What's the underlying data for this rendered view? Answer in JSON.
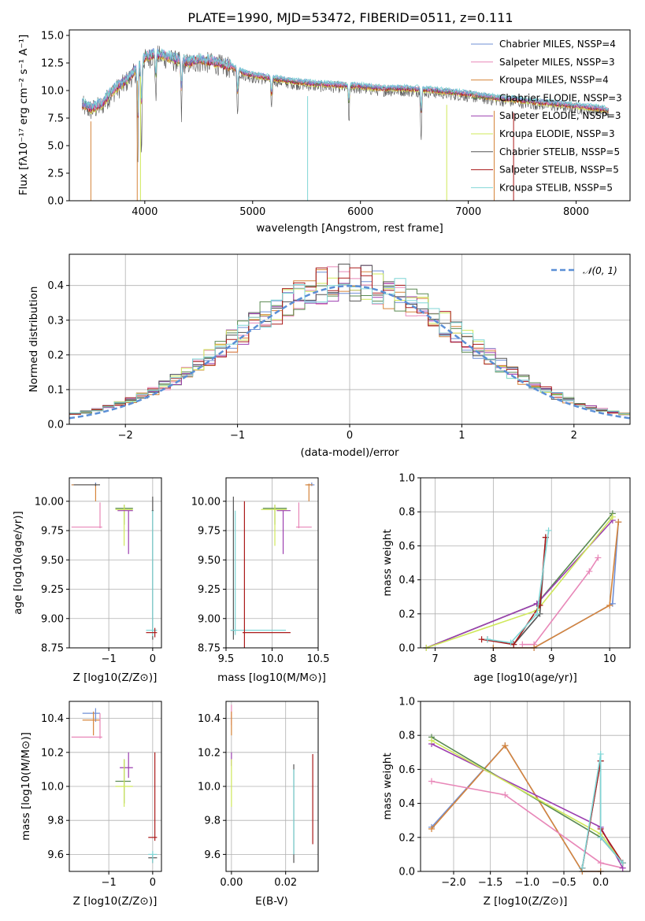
{
  "title": "PLATE=1990, MJD=53472, FIBERID=0511, z=0.111",
  "colors": {
    "chabrier_miles": "#6f8fd6",
    "salpeter_miles": "#e887b8",
    "kroupa_miles": "#d6843a",
    "chabrier_elodie": "#5a8a52",
    "salpeter_elodie": "#9c3fb0",
    "kroupa_elodie": "#cfe85a",
    "chabrier_stelib": "#555555",
    "salpeter_stelib": "#aa1a1a",
    "kroupa_stelib": "#7fd6d6",
    "normal": "#5b8fd6"
  },
  "chart_data": [
    {
      "type": "line",
      "name": "spectrum",
      "xlabel": "wavelength [Angstrom, rest frame]",
      "ylabel": "Flux [fλ10⁻¹⁷ erg cm⁻² s⁻¹ A⁻¹]",
      "xlim": [
        3300,
        8500
      ],
      "ylim": [
        0,
        15.5
      ],
      "xticks": [
        "4000",
        "5000",
        "6000",
        "7000",
        "8000"
      ],
      "yticks": [
        "0.0",
        "2.5",
        "5.0",
        "7.5",
        "10.0",
        "12.5",
        "15.0"
      ],
      "legend_position": "top-right",
      "legend": [
        {
          "label": "Chabrier MILES, NSSP=4",
          "color_key": "chabrier_miles"
        },
        {
          "label": "Salpeter MILES, NSSP=3",
          "color_key": "salpeter_miles"
        },
        {
          "label": "Kroupa MILES, NSSP=4",
          "color_key": "kroupa_miles"
        },
        {
          "label": "Chabrier ELODIE, NSSP=3",
          "color_key": "chabrier_elodie"
        },
        {
          "label": "Salpeter ELODIE, NSSP=3",
          "color_key": "salpeter_elodie"
        },
        {
          "label": "Kroupa ELODIE, NSSP=3",
          "color_key": "kroupa_elodie"
        },
        {
          "label": "Chabrier STELIB, NSSP=5",
          "color_key": "chabrier_stelib"
        },
        {
          "label": "Salpeter STELIB, NSSP=5",
          "color_key": "salpeter_stelib"
        },
        {
          "label": "Kroupa STELIB, NSSP=5",
          "color_key": "kroupa_stelib"
        }
      ],
      "continuum_x": [
        3420,
        3500,
        3600,
        3700,
        3800,
        3900,
        4000,
        4100,
        4200,
        4300,
        4400,
        4500,
        4600,
        4700,
        4800,
        4900,
        5000,
        5200,
        5400,
        5600,
        5800,
        6000,
        6200,
        6400,
        6600,
        6800,
        7000,
        7200,
        7400,
        7600,
        7800,
        8000,
        8200,
        8300
      ],
      "continuum_y": [
        8.6,
        8.2,
        8.6,
        9.8,
        10.5,
        11.5,
        12.8,
        13.2,
        12.9,
        12.6,
        12.4,
        12.6,
        12.5,
        12.3,
        12.0,
        11.5,
        11.2,
        10.9,
        10.6,
        10.4,
        10.3,
        10.2,
        10.0,
        10.0,
        9.9,
        9.7,
        9.5,
        9.2,
        9.0,
        8.8,
        8.6,
        8.4,
        8.2,
        8.0
      ]
    },
    {
      "type": "line",
      "name": "residuals",
      "xlabel": "(data-model)/error",
      "ylabel": "Normed distribution",
      "xlim": [
        -2.5,
        2.5
      ],
      "ylim": [
        0,
        0.49
      ],
      "xticks": [
        "−2",
        "−1",
        "0",
        "1",
        "2"
      ],
      "yticks": [
        "0.0",
        "0.1",
        "0.2",
        "0.3",
        "0.4"
      ],
      "grid": true,
      "legend_position": "top-right",
      "legend": [
        {
          "label": "𝒩(0, 1)",
          "color_key": "normal"
        }
      ]
    },
    {
      "type": "scatter",
      "name": "age-vs-Z",
      "xlabel": "Z [log10(Z/Z⊙)]",
      "ylabel": "age  [log10(age/yr)]",
      "xlim": [
        -1.9,
        0.2
      ],
      "ylim": [
        8.75,
        10.2
      ],
      "xticks": [
        "−1",
        "0"
      ],
      "yticks": [
        "8.75",
        "9.00",
        "9.25",
        "9.50",
        "9.75",
        "10.00"
      ],
      "grid": true,
      "points": [
        {
          "k": "chabrier_miles",
          "x": -1.3,
          "y": 10.14,
          "x0": -1.85,
          "x1": -1.2,
          "y0": 10.13,
          "y1": 10.16
        },
        {
          "k": "kroupa_miles",
          "x": -1.3,
          "y": 10.14,
          "x0": -1.85,
          "x1": -1.2,
          "y0": 10.0,
          "y1": 10.15
        },
        {
          "k": "chabrier_stelib",
          "x": -1.3,
          "y": 10.14,
          "x0": -1.8,
          "x1": -1.2,
          "y0": 10.13,
          "y1": 10.15
        },
        {
          "k": "salpeter_miles",
          "x": -1.2,
          "y": 9.78,
          "x0": -1.85,
          "x1": -1.15,
          "y0": 9.77,
          "y1": 9.99
        },
        {
          "k": "chabrier_elodie",
          "x": -0.65,
          "y": 9.94,
          "x0": -0.85,
          "x1": -0.45,
          "y0": 9.8,
          "y1": 9.97
        },
        {
          "k": "kroupa_elodie",
          "x": -0.65,
          "y": 9.93,
          "x0": -0.85,
          "x1": -0.45,
          "y0": 9.62,
          "y1": 9.97
        },
        {
          "k": "salpeter_elodie",
          "x": -0.55,
          "y": 9.92,
          "x0": -0.8,
          "x1": -0.45,
          "y0": 9.55,
          "y1": 9.92
        },
        {
          "k": "chabrier_stelib",
          "x": 0.0,
          "y": 9.92,
          "x0": -0.02,
          "x1": 0.02,
          "y0": 8.82,
          "y1": 10.04
        },
        {
          "k": "kroupa_stelib",
          "x": 0.0,
          "y": 8.9,
          "x0": -0.15,
          "x1": 0.1,
          "y0": 8.85,
          "y1": 9.92
        },
        {
          "k": "salpeter_stelib",
          "x": 0.05,
          "y": 8.88,
          "x0": -0.15,
          "x1": 0.1,
          "y0": 8.84,
          "y1": 8.92
        }
      ]
    },
    {
      "type": "scatter",
      "name": "age-vs-mass",
      "xlabel": "mass [log10(M/M⊙)]",
      "ylabel": "",
      "xlim": [
        9.5,
        10.5
      ],
      "ylim": [
        8.75,
        10.2
      ],
      "xticks": [
        "9.5",
        "10.0",
        "10.5"
      ],
      "yticks": [
        "8.75",
        "9.00",
        "9.25",
        "9.50",
        "9.75",
        "10.00"
      ],
      "grid": true,
      "points": [
        {
          "k": "chabrier_miles",
          "x": 10.43,
          "y": 10.14,
          "x0": 10.38,
          "x1": 10.46,
          "y0": 10.13,
          "y1": 10.16
        },
        {
          "k": "kroupa_miles",
          "x": 10.4,
          "y": 10.14,
          "x0": 10.36,
          "x1": 10.44,
          "y0": 10.0,
          "y1": 10.15
        },
        {
          "k": "salpeter_miles",
          "x": 10.29,
          "y": 9.78,
          "x0": 10.26,
          "x1": 10.43,
          "y0": 9.77,
          "y1": 9.99
        },
        {
          "k": "chabrier_elodie",
          "x": 10.03,
          "y": 9.94,
          "x0": 9.9,
          "x1": 10.16,
          "y0": 9.8,
          "y1": 9.97
        },
        {
          "k": "kroupa_elodie",
          "x": 10.03,
          "y": 9.93,
          "x0": 9.88,
          "x1": 10.16,
          "y0": 9.62,
          "y1": 9.97
        },
        {
          "k": "salpeter_elodie",
          "x": 10.12,
          "y": 9.92,
          "x0": 10.05,
          "x1": 10.2,
          "y0": 9.55,
          "y1": 9.92
        },
        {
          "k": "chabrier_stelib",
          "x": 9.58,
          "y": 8.9,
          "x0": 9.55,
          "x1": 9.6,
          "y0": 8.82,
          "y1": 10.04
        },
        {
          "k": "kroupa_stelib",
          "x": 9.6,
          "y": 8.9,
          "x0": 9.55,
          "x1": 10.15,
          "y0": 8.86,
          "y1": 9.92
        },
        {
          "k": "salpeter_stelib",
          "x": 9.7,
          "y": 8.88,
          "x0": 9.68,
          "x1": 10.2,
          "y0": 8.75,
          "y1": 10.0
        }
      ]
    },
    {
      "type": "line",
      "name": "mass-weight-vs-age",
      "xlabel": "age  [log10(age/yr)]",
      "ylabel": "mass weight",
      "xlim": [
        6.75,
        10.35
      ],
      "ylim": [
        0,
        1.0
      ],
      "xticks": [
        "7",
        "8",
        "9",
        "10"
      ],
      "yticks": [
        "0.0",
        "0.2",
        "0.4",
        "0.6",
        "0.8",
        "1.0"
      ],
      "grid": true,
      "series": [
        {
          "k": "chabrier_miles",
          "x": [
            8.0,
            8.7,
            10.05,
            10.15
          ],
          "y": [
            0.0,
            0.0,
            0.26,
            0.74
          ]
        },
        {
          "k": "salpeter_miles",
          "x": [
            8.5,
            8.7,
            9.65,
            9.8
          ],
          "y": [
            0.02,
            0.02,
            0.45,
            0.53
          ]
        },
        {
          "k": "kroupa_miles",
          "x": [
            8.0,
            8.7,
            10.0,
            10.15
          ],
          "y": [
            0.0,
            0.0,
            0.25,
            0.74
          ]
        },
        {
          "k": "chabrier_elodie",
          "x": [
            6.85,
            8.75,
            10.05
          ],
          "y": [
            0.0,
            0.26,
            0.79
          ]
        },
        {
          "k": "salpeter_elodie",
          "x": [
            6.85,
            8.75,
            10.05
          ],
          "y": [
            0.0,
            0.26,
            0.75
          ]
        },
        {
          "k": "kroupa_elodie",
          "x": [
            6.85,
            8.75,
            10.05
          ],
          "y": [
            0.0,
            0.22,
            0.77
          ]
        },
        {
          "k": "chabrier_stelib",
          "x": [
            7.9,
            8.35,
            8.8,
            8.9
          ],
          "y": [
            0.05,
            0.02,
            0.2,
            0.65
          ]
        },
        {
          "k": "salpeter_stelib",
          "x": [
            7.8,
            8.35,
            8.8,
            8.9
          ],
          "y": [
            0.05,
            0.02,
            0.25,
            0.65
          ]
        },
        {
          "k": "kroupa_stelib",
          "x": [
            7.9,
            8.3,
            8.75,
            8.95
          ],
          "y": [
            0.05,
            0.03,
            0.2,
            0.69
          ]
        }
      ]
    },
    {
      "type": "scatter",
      "name": "mass-vs-Z",
      "xlabel": "Z [log10(Z/Z⊙)]",
      "ylabel": "mass [log10(M/M⊙)]",
      "xlim": [
        -1.9,
        0.2
      ],
      "ylim": [
        9.5,
        10.5
      ],
      "xticks": [
        "−1",
        "0"
      ],
      "yticks": [
        "9.6",
        "9.8",
        "10.0",
        "10.2",
        "10.4"
      ],
      "grid": true,
      "points": [
        {
          "k": "chabrier_miles",
          "x": -1.3,
          "y": 10.43,
          "x0": -1.6,
          "x1": -1.2,
          "y0": 10.38,
          "y1": 10.46
        },
        {
          "k": "kroupa_miles",
          "x": -1.35,
          "y": 10.39,
          "x0": -1.6,
          "x1": -1.2,
          "y0": 10.3,
          "y1": 10.44
        },
        {
          "k": "salpeter_miles",
          "x": -1.2,
          "y": 10.29,
          "x0": -1.85,
          "x1": -1.15,
          "y0": 10.28,
          "y1": 10.43
        },
        {
          "k": "salpeter_elodie",
          "x": -0.55,
          "y": 10.11,
          "x0": -0.75,
          "x1": -0.45,
          "y0": 10.05,
          "y1": 10.2
        },
        {
          "k": "chabrier_elodie",
          "x": -0.65,
          "y": 10.03,
          "x0": -0.85,
          "x1": -0.5,
          "y0": 9.9,
          "y1": 10.16
        },
        {
          "k": "kroupa_elodie",
          "x": -0.65,
          "y": 10.0,
          "x0": -0.85,
          "x1": -0.45,
          "y0": 9.88,
          "y1": 10.16
        },
        {
          "k": "salpeter_stelib",
          "x": 0.05,
          "y": 9.7,
          "x0": -0.1,
          "x1": 0.1,
          "y0": 9.68,
          "y1": 10.2
        },
        {
          "k": "chabrier_stelib",
          "x": 0.0,
          "y": 9.58,
          "x0": -0.1,
          "x1": 0.1,
          "y0": 9.55,
          "y1": 9.6
        },
        {
          "k": "kroupa_stelib",
          "x": 0.0,
          "y": 9.6,
          "x0": -0.1,
          "x1": 0.1,
          "y0": 9.55,
          "y1": 9.62
        }
      ]
    },
    {
      "type": "scatter",
      "name": "mass-vs-EBV",
      "xlabel": "E(B-V)",
      "ylabel": "",
      "xlim": [
        -0.002,
        0.032
      ],
      "ylim": [
        9.5,
        10.5
      ],
      "xticks": [
        "0.00",
        "0.02"
      ],
      "yticks": [
        "9.6",
        "9.8",
        "10.0",
        "10.2",
        "10.4"
      ],
      "grid": true,
      "points": [
        {
          "k": "salpeter_miles",
          "x": 0.0,
          "y": 10.42,
          "x0": 0.0,
          "x1": 0.0,
          "y0": 10.36,
          "y1": 10.48
        },
        {
          "k": "kroupa_miles",
          "x": 0.0,
          "y": 10.38,
          "x0": 0.0,
          "x1": 0.0,
          "y0": 10.3,
          "y1": 10.44
        },
        {
          "k": "salpeter_elodie",
          "x": 0.0,
          "y": 10.15,
          "x0": 0.0,
          "x1": 0.0,
          "y0": 10.12,
          "y1": 10.2
        },
        {
          "k": "kroupa_elodie",
          "x": 0.0,
          "y": 10.0,
          "x0": 0.0,
          "x1": 0.0,
          "y0": 9.88,
          "y1": 10.16
        },
        {
          "k": "chabrier_stelib",
          "x": 0.023,
          "y": 9.9,
          "x0": 0.023,
          "x1": 0.023,
          "y0": 9.55,
          "y1": 10.13
        },
        {
          "k": "kroupa_stelib",
          "x": 0.023,
          "y": 9.8,
          "x0": 0.023,
          "x1": 0.023,
          "y0": 9.6,
          "y1": 10.1
        },
        {
          "k": "salpeter_stelib",
          "x": 0.03,
          "y": 9.9,
          "x0": 0.03,
          "x1": 0.03,
          "y0": 9.66,
          "y1": 10.19
        }
      ]
    },
    {
      "type": "line",
      "name": "mass-weight-vs-Z",
      "xlabel": "Z [log10(Z/Z⊙)]",
      "ylabel": "mass weight",
      "xlim": [
        -2.45,
        0.4
      ],
      "ylim": [
        0,
        1.0
      ],
      "xticks": [
        "−2.0",
        "−1.5",
        "−1.0",
        "−0.5",
        "0.0"
      ],
      "yticks": [
        "0.0",
        "0.2",
        "0.4",
        "0.6",
        "0.8",
        "1.0"
      ],
      "grid": true,
      "series": [
        {
          "k": "chabrier_miles",
          "x": [
            -2.3,
            -1.3,
            -0.25,
            0.0
          ],
          "y": [
            0.26,
            0.74,
            0.0,
            0.0
          ]
        },
        {
          "k": "kroupa_miles",
          "x": [
            -2.3,
            -1.3,
            -0.25,
            0.0
          ],
          "y": [
            0.25,
            0.74,
            0.0,
            0.0
          ]
        },
        {
          "k": "salpeter_miles",
          "x": [
            -2.3,
            -1.3,
            0.0,
            0.3
          ],
          "y": [
            0.53,
            0.45,
            0.05,
            0.02
          ]
        },
        {
          "k": "chabrier_elodie",
          "x": [
            -2.3,
            0.0,
            0.3
          ],
          "y": [
            0.79,
            0.2,
            0.05
          ]
        },
        {
          "k": "salpeter_elodie",
          "x": [
            -2.3,
            0.0,
            0.3
          ],
          "y": [
            0.75,
            0.26,
            0.02
          ]
        },
        {
          "k": "kroupa_elodie",
          "x": [
            -2.3,
            0.0,
            0.3
          ],
          "y": [
            0.77,
            0.22,
            0.05
          ]
        },
        {
          "k": "chabrier_stelib",
          "x": [
            -0.25,
            0.0,
            0.0,
            0.3
          ],
          "y": [
            0.02,
            0.65,
            0.2,
            0.05
          ]
        },
        {
          "k": "salpeter_stelib",
          "x": [
            -0.25,
            0.0,
            0.0,
            0.3
          ],
          "y": [
            0.02,
            0.65,
            0.25,
            0.05
          ]
        },
        {
          "k": "kroupa_stelib",
          "x": [
            -0.25,
            0.0,
            0.0,
            0.3
          ],
          "y": [
            0.02,
            0.69,
            0.2,
            0.05
          ]
        }
      ]
    }
  ]
}
